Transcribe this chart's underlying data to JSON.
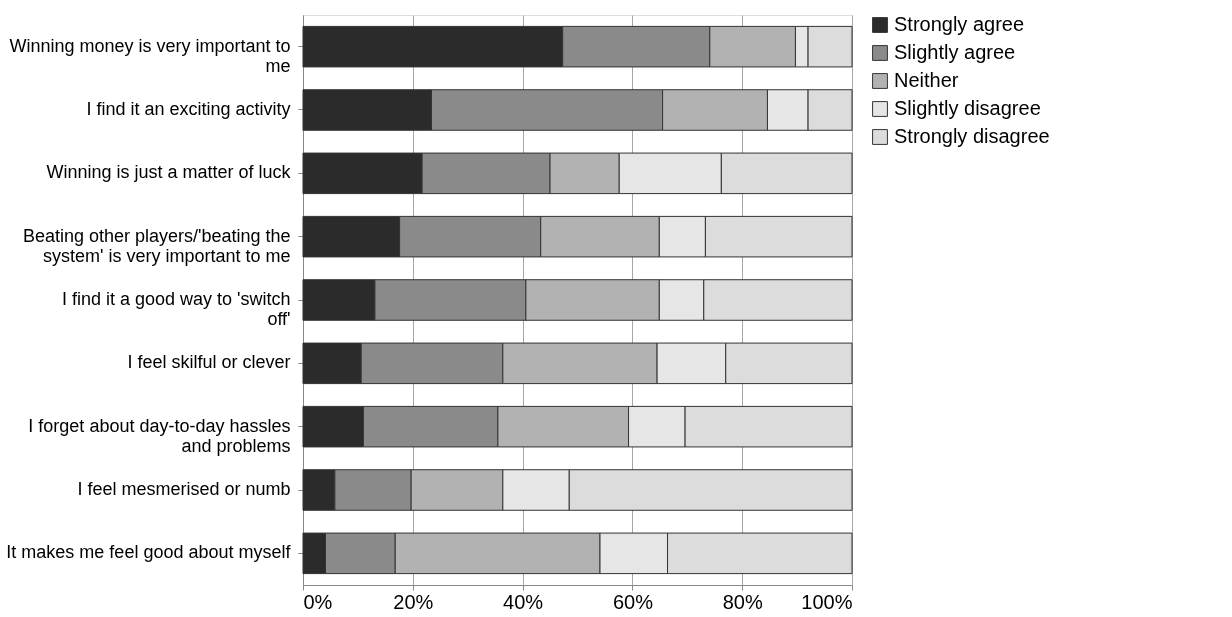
{
  "chart_data": {
    "type": "bar",
    "orientation": "horizontal",
    "stacked": true,
    "categories": [
      "Winning money is very important to me",
      "I find it an exciting activity",
      "Winning is just a matter of luck",
      "Beating other players/'beating the system' is very important to me",
      "I find it  a good way to 'switch off'",
      "I feel skilful or clever",
      "I forget about day-to-day hassles and problems",
      "I feel mesmerised or numb",
      "It makes me feel good about myself"
    ],
    "series": [
      {
        "name": "Strongly agree",
        "color": "#2b2b2b",
        "values": [
          47.3,
          23.4,
          21.7,
          17.6,
          13.1,
          10.6,
          11.0,
          5.8,
          4.1
        ]
      },
      {
        "name": "Slightly agree",
        "color": "#8a8a8a",
        "values": [
          26.8,
          42.1,
          23.3,
          25.7,
          27.5,
          25.8,
          24.5,
          13.9,
          12.7
        ]
      },
      {
        "name": "Neither",
        "color": "#b2b2b2",
        "values": [
          15.6,
          19.1,
          12.6,
          21.6,
          24.3,
          28.1,
          23.8,
          16.7,
          37.3
        ]
      },
      {
        "name": "Slightly disagree",
        "color": "#e6e6e6",
        "values": [
          2.3,
          7.4,
          18.6,
          8.4,
          8.1,
          12.5,
          10.3,
          12.1,
          12.3
        ]
      },
      {
        "name": "Strongly disagree",
        "color": "#dcdcdc",
        "values": [
          8.0,
          8.0,
          23.8,
          26.7,
          27.0,
          23.0,
          30.4,
          51.5,
          33.6
        ]
      }
    ],
    "xlim": [
      0,
      100
    ],
    "xticks": [
      {
        "value": 0,
        "label": "0%"
      },
      {
        "value": 20,
        "label": "20%"
      },
      {
        "value": 40,
        "label": "40%"
      },
      {
        "value": 60,
        "label": "60%"
      },
      {
        "value": 80,
        "label": "80%"
      },
      {
        "value": 100,
        "label": "100%"
      }
    ],
    "grid": "x",
    "legend": "right"
  }
}
